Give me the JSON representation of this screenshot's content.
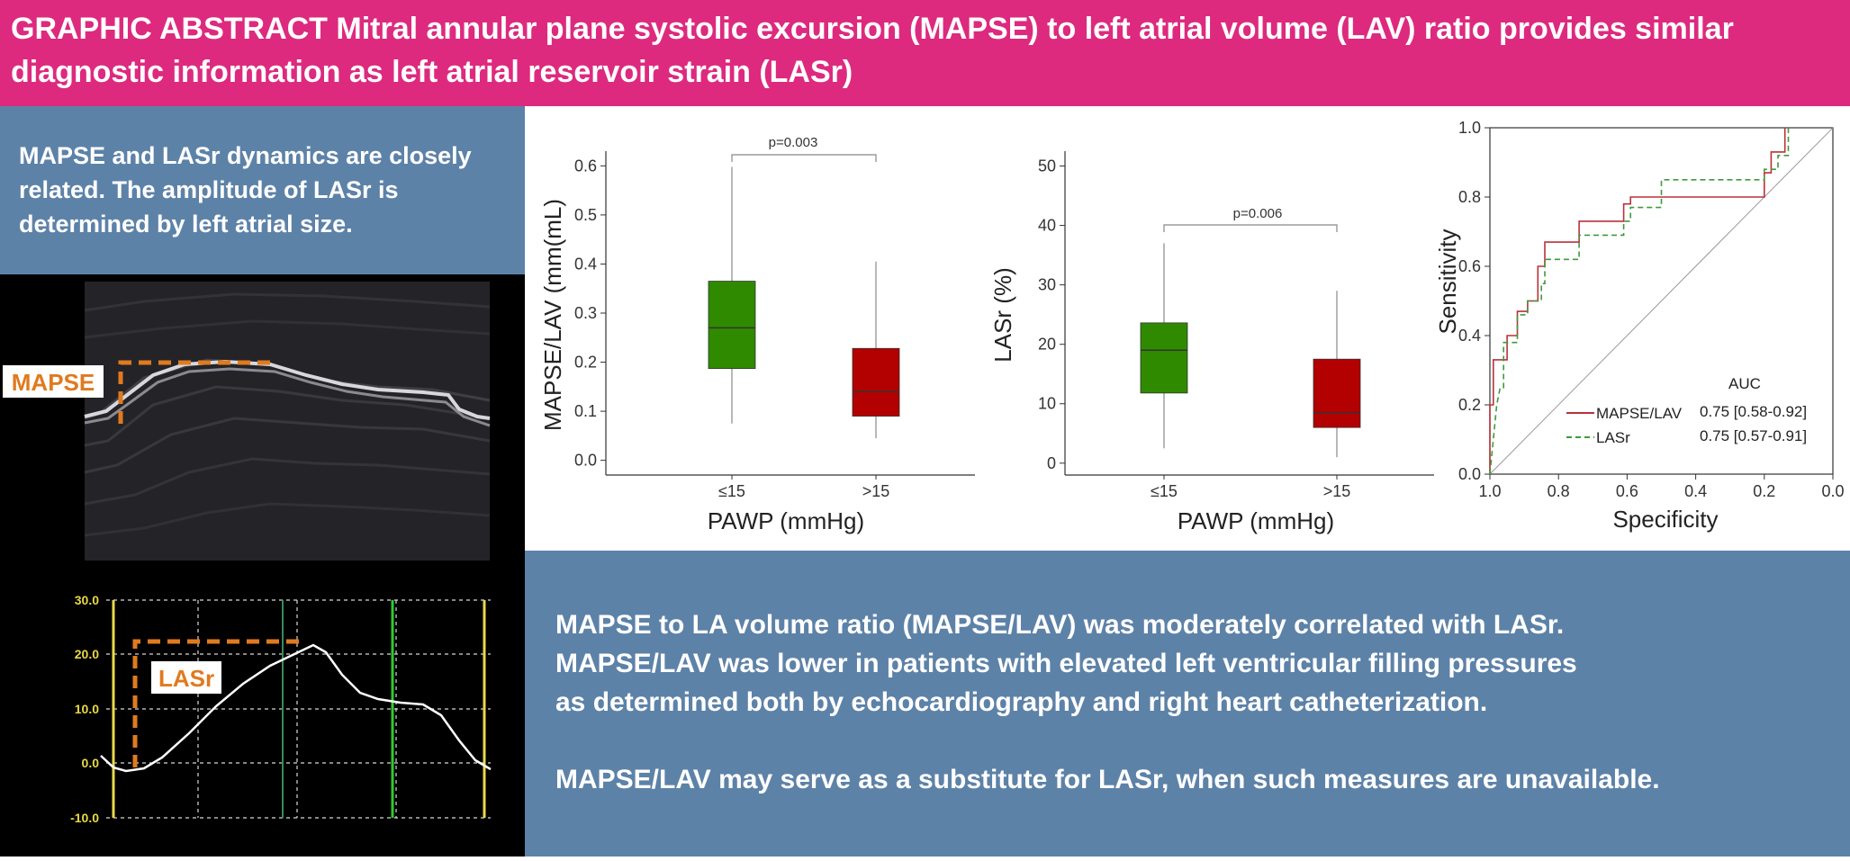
{
  "header": {
    "title": "GRAPHIC ABSTRACT Mitral annular plane systolic excursion (MAPSE) to left atrial volume (LAV) ratio provides similar diagnostic information as left atrial reservoir strain (LASr)"
  },
  "left_panel": {
    "text": "MAPSE and LASr dynamics are closely related. The amplitude of LASr is determined by left atrial size.",
    "mapse_label": "MAPSE",
    "lasr_label": "LASr",
    "strain_ticks": [
      "30.0",
      "20.0",
      "10.0",
      "0.0",
      "-10.0"
    ]
  },
  "bottom_panel": {
    "lines": [
      "MAPSE to LA volume ratio (MAPSE/LAV) was moderately correlated with LASr.",
      "MAPSE/LAV was lower in patients with elevated left ventricular filling pressures",
      "as determined both by echocardiography and right heart catheterization.",
      "",
      "MAPSE/LAV may serve as a substitute for LASr, when such measures are unavailable."
    ]
  },
  "colors": {
    "header": "#dd2a7f",
    "panel": "#5d82a8",
    "box_low": "#2f8a00",
    "box_high": "#b30000",
    "mapse_roc": "#b8323a",
    "lasr_roc": "#3f9b3a",
    "annotation": "#e07a1f"
  },
  "chart_data": [
    {
      "type": "box",
      "xlabel": "PAWP (mmHg)",
      "ylabel": "MAPSE/LAV (mm(mL)",
      "ylim": [
        -0.03,
        0.63
      ],
      "yticks": [
        "0.0",
        "0.1",
        "0.2",
        "0.3",
        "0.4",
        "0.5",
        "0.6"
      ],
      "categories": [
        "≤15",
        ">15"
      ],
      "boxes": [
        {
          "min": 0.075,
          "q1": 0.187,
          "median": 0.27,
          "q3": 0.365,
          "max": 0.598
        },
        {
          "min": 0.045,
          "q1": 0.09,
          "median": 0.14,
          "q3": 0.228,
          "max": 0.405
        }
      ],
      "annotation": "p=0.003"
    },
    {
      "type": "box",
      "xlabel": "PAWP (mmHg)",
      "ylabel": "LASr (%)",
      "ylim": [
        -2,
        52.5
      ],
      "yticks": [
        "0",
        "10",
        "20",
        "30",
        "40",
        "50"
      ],
      "categories": [
        "≤15",
        ">15"
      ],
      "boxes": [
        {
          "min": 2.5,
          "q1": 11.8,
          "median": 19,
          "q3": 23.6,
          "max": 37
        },
        {
          "min": 1,
          "q1": 6,
          "median": 8.5,
          "q3": 17.5,
          "max": 29
        }
      ],
      "annotation": "p=0.006"
    },
    {
      "type": "line",
      "xlabel": "Specificity",
      "ylabel": "Sensitivity",
      "xlim": [
        1.0,
        0.0
      ],
      "ylim": [
        0.0,
        1.0
      ],
      "xticks": [
        "1.0",
        "0.8",
        "0.6",
        "0.4",
        "0.2",
        "0.0"
      ],
      "yticks": [
        "0.0",
        "0.2",
        "0.4",
        "0.6",
        "0.8",
        "1.0"
      ],
      "legend_title": "AUC",
      "series": [
        {
          "name": "MAPSE/LAV",
          "auc": "0.75 [0.58-0.92]",
          "x": [
            1.0,
            1.0,
            0.99,
            0.99,
            0.95,
            0.95,
            0.92,
            0.92,
            0.89,
            0.89,
            0.86,
            0.86,
            0.84,
            0.84,
            0.78,
            0.78,
            0.74,
            0.74,
            0.61,
            0.61,
            0.59,
            0.59,
            0.48,
            0.48,
            0.43,
            0.43,
            0.2,
            0.2,
            0.18,
            0.18,
            0.14,
            0.14
          ],
          "y": [
            0.0,
            0.2,
            0.2,
            0.33,
            0.33,
            0.4,
            0.4,
            0.47,
            0.47,
            0.5,
            0.5,
            0.6,
            0.6,
            0.67,
            0.67,
            0.67,
            0.67,
            0.73,
            0.73,
            0.78,
            0.78,
            0.8,
            0.8,
            0.8,
            0.8,
            0.8,
            0.8,
            0.87,
            0.87,
            0.93,
            0.93,
            1.0
          ]
        },
        {
          "name": "LASr",
          "auc": "0.75 [0.57-0.91]",
          "x": [
            1.0,
            0.99,
            0.98,
            0.97,
            0.96,
            0.96,
            0.92,
            0.92,
            0.89,
            0.89,
            0.85,
            0.85,
            0.84,
            0.84,
            0.74,
            0.74,
            0.61,
            0.61,
            0.59,
            0.59,
            0.5,
            0.5,
            0.2,
            0.2,
            0.16,
            0.16,
            0.13,
            0.13
          ],
          "y": [
            0.0,
            0.1,
            0.2,
            0.25,
            0.25,
            0.38,
            0.38,
            0.46,
            0.46,
            0.5,
            0.5,
            0.55,
            0.55,
            0.62,
            0.62,
            0.69,
            0.69,
            0.73,
            0.73,
            0.77,
            0.77,
            0.85,
            0.85,
            0.88,
            0.88,
            0.92,
            0.92,
            1.0
          ]
        }
      ]
    }
  ]
}
